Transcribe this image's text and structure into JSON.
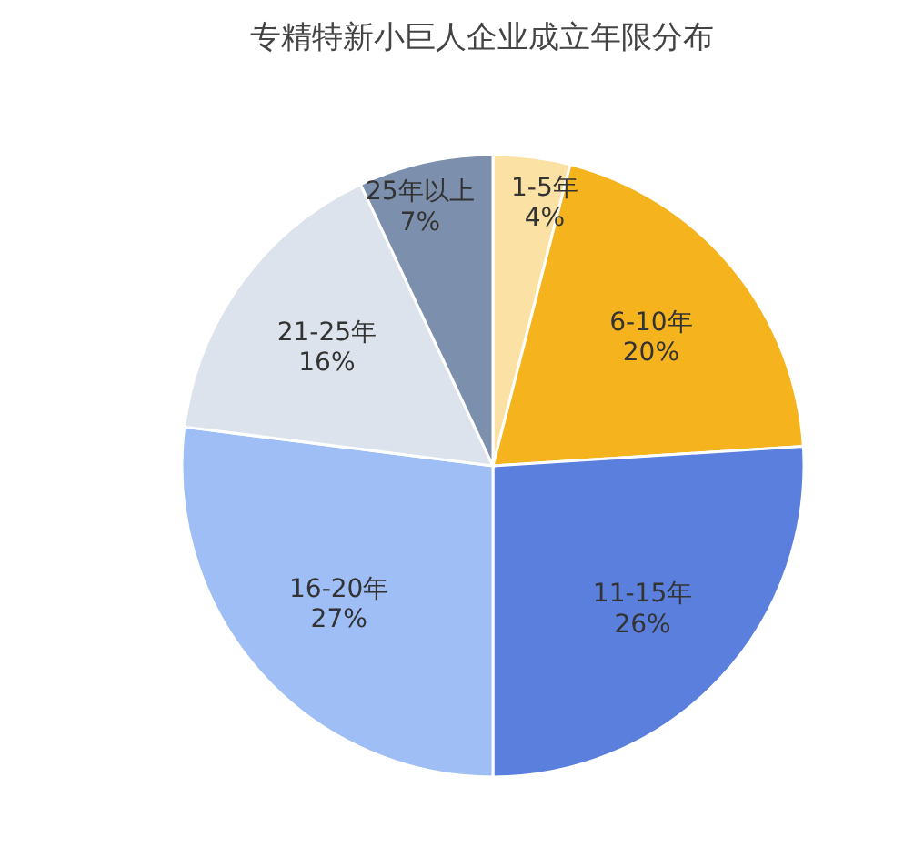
{
  "chart_data": {
    "type": "pie",
    "title": "专精特新小巨人企业成立年限分布",
    "categories": [
      "1-5年",
      "6-10年",
      "11-15年",
      "16-20年",
      "21-25年",
      "25年以上"
    ],
    "values": [
      4,
      20,
      26,
      27,
      16,
      7
    ],
    "value_labels": [
      "4%",
      "20%",
      "26%",
      "27%",
      "16%",
      "7%"
    ],
    "colors": [
      "#fbe2a4",
      "#f5b31e",
      "#5b7fdc",
      "#9fbef6",
      "#dde3ec",
      "#7c8fac"
    ],
    "legend": false
  }
}
